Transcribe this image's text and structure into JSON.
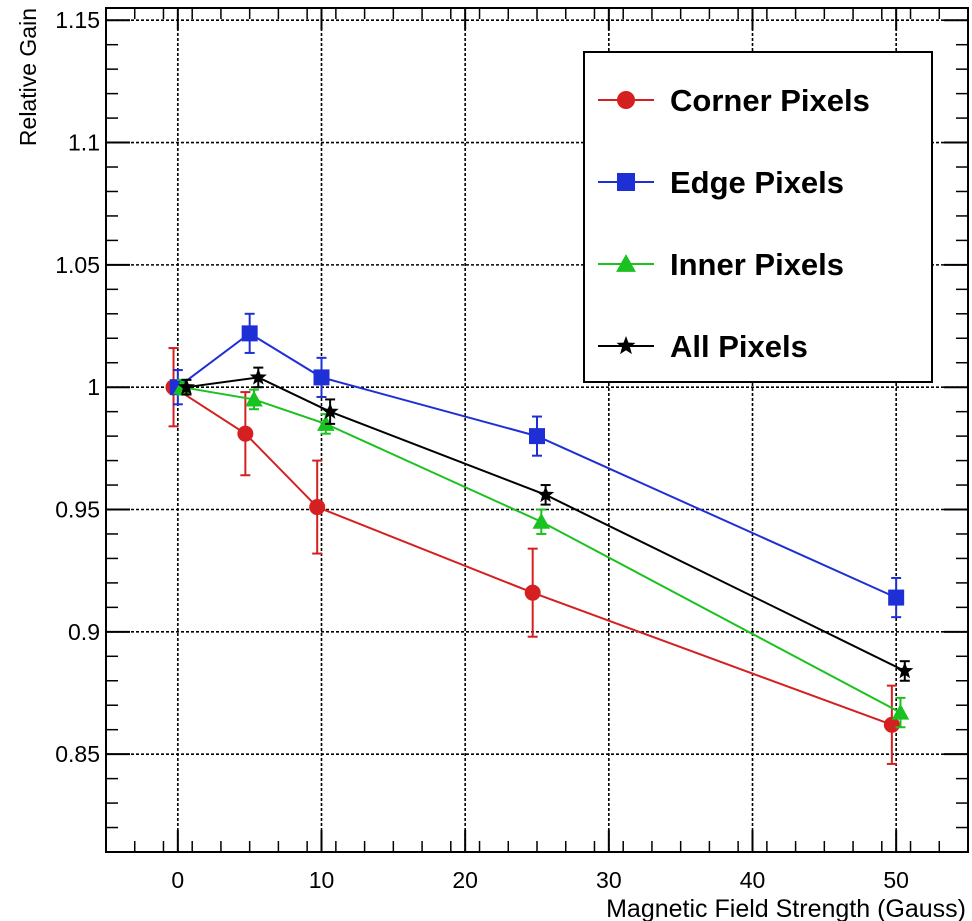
{
  "chart_data": {
    "type": "line",
    "title": "",
    "xlabel": "Magnetic Field Strength (Gauss)",
    "ylabel": "Relative Gain",
    "xlim": [
      -5,
      55
    ],
    "ylim": [
      0.81,
      1.155
    ],
    "x_ticks": [
      0,
      10,
      20,
      30,
      40,
      50
    ],
    "y_ticks": [
      0.85,
      0.9,
      0.95,
      1,
      1.05,
      1.1,
      1.15
    ],
    "x_tick_labels": [
      "0",
      "10",
      "20",
      "30",
      "40",
      "50"
    ],
    "y_tick_labels": [
      "0.85",
      "0.9",
      "0.95",
      "1",
      "1.05",
      "1.1",
      "1.15"
    ],
    "grid": true,
    "legend_position": "top-right",
    "series": [
      {
        "name": "Corner Pixels",
        "color": "#d42020",
        "marker": "circle",
        "points": [
          {
            "x": -0.3,
            "y": 1.0,
            "err": 0.016
          },
          {
            "x": 4.7,
            "y": 0.981,
            "err": 0.017
          },
          {
            "x": 9.7,
            "y": 0.951,
            "err": 0.019
          },
          {
            "x": 24.7,
            "y": 0.916,
            "err": 0.018
          },
          {
            "x": 49.7,
            "y": 0.862,
            "err": 0.016
          }
        ]
      },
      {
        "name": "Edge Pixels",
        "color": "#1f2fd6",
        "marker": "square",
        "points": [
          {
            "x": 0.0,
            "y": 1.0,
            "err": 0.007
          },
          {
            "x": 5.0,
            "y": 1.022,
            "err": 0.008
          },
          {
            "x": 10.0,
            "y": 1.004,
            "err": 0.008
          },
          {
            "x": 25.0,
            "y": 0.98,
            "err": 0.008
          },
          {
            "x": 50.0,
            "y": 0.914,
            "err": 0.008
          }
        ]
      },
      {
        "name": "Inner Pixels",
        "color": "#19c21e",
        "marker": "triangle",
        "points": [
          {
            "x": 0.3,
            "y": 1.0,
            "err": 0.003
          },
          {
            "x": 5.3,
            "y": 0.995,
            "err": 0.004
          },
          {
            "x": 10.3,
            "y": 0.985,
            "err": 0.004
          },
          {
            "x": 25.3,
            "y": 0.945,
            "err": 0.005
          },
          {
            "x": 50.3,
            "y": 0.867,
            "err": 0.006
          }
        ]
      },
      {
        "name": "All Pixels",
        "color": "#000000",
        "marker": "star",
        "points": [
          {
            "x": 0.6,
            "y": 1.0,
            "err": 0.003
          },
          {
            "x": 5.6,
            "y": 1.004,
            "err": 0.004
          },
          {
            "x": 10.6,
            "y": 0.99,
            "err": 0.005
          },
          {
            "x": 25.6,
            "y": 0.956,
            "err": 0.004
          },
          {
            "x": 50.6,
            "y": 0.884,
            "err": 0.004
          }
        ]
      }
    ]
  }
}
